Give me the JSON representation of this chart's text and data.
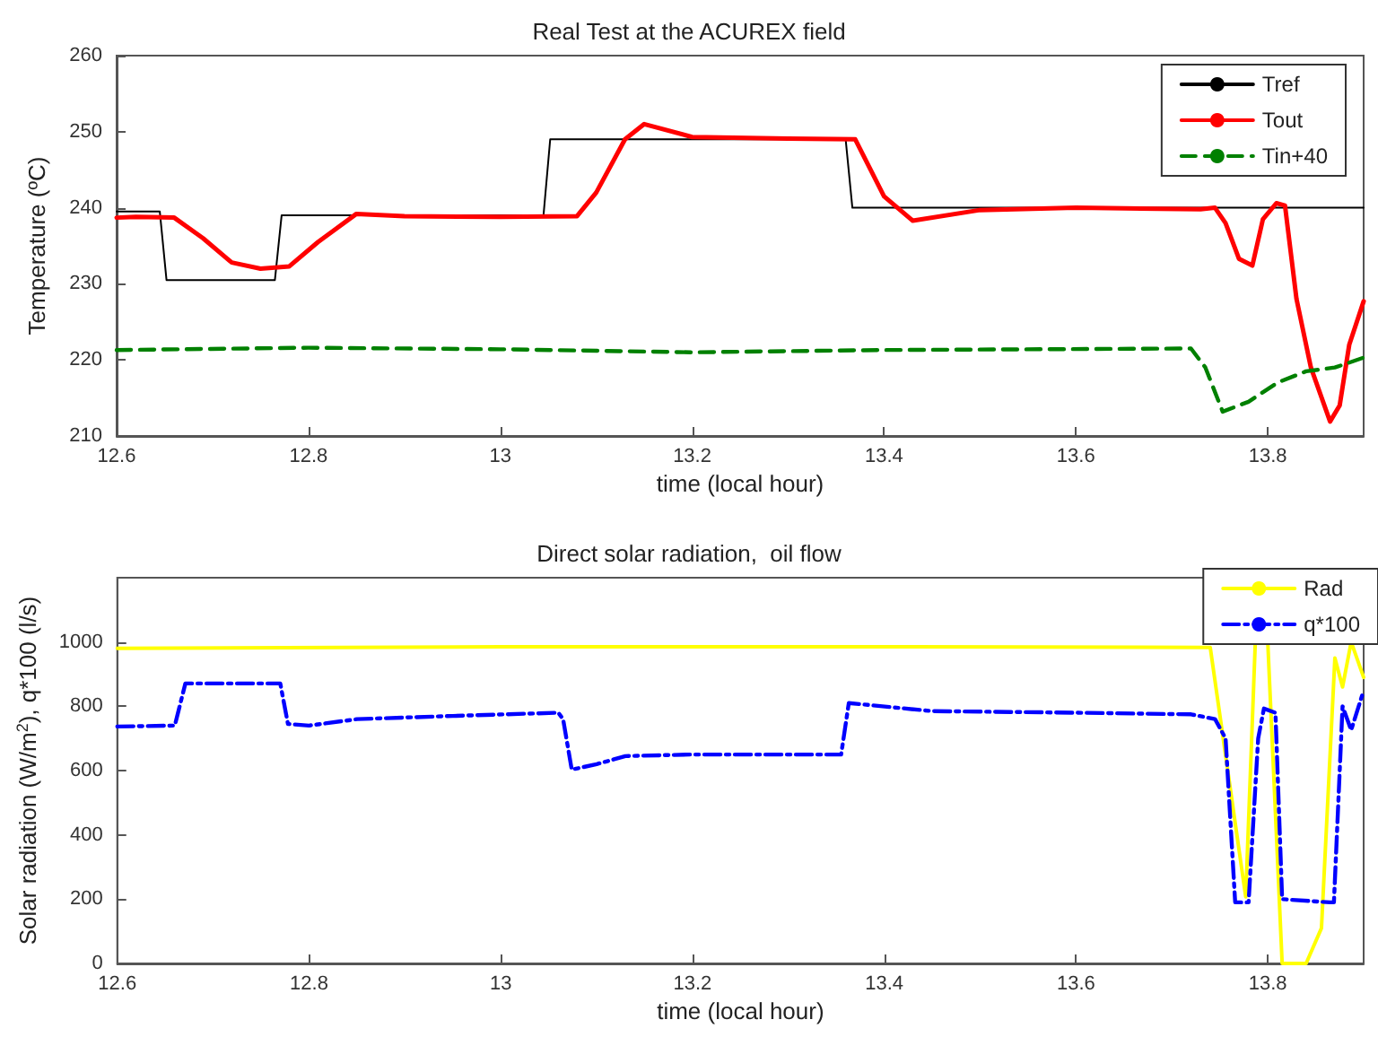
{
  "chart_data": [
    {
      "type": "line",
      "title": "Real Test at the ACUREX field",
      "xlabel": "time (local hour)",
      "ylabel": "Temperature (ºC)",
      "xlim": [
        12.6,
        13.9
      ],
      "xticks": [
        12.6,
        12.8,
        13,
        13.2,
        13.4,
        13.6,
        13.8
      ],
      "ylim": [
        210,
        260
      ],
      "yticks": [
        210,
        220,
        230,
        240,
        250,
        260
      ],
      "grid": false,
      "legend": "top right",
      "marker": "none",
      "series": [
        {
          "name": "Tref",
          "color": "#000000",
          "line_style": "solid",
          "x": [
            12.6,
            12.645,
            12.652,
            12.765,
            12.772,
            13.045,
            13.052,
            13.36,
            13.367,
            13.9
          ],
          "values": [
            239.5,
            239.5,
            230.5,
            230.5,
            239,
            239,
            249,
            249,
            240,
            240
          ]
        },
        {
          "name": "Tout",
          "color": "#ff0000",
          "line_style": "solid",
          "x": [
            12.6,
            12.62,
            12.66,
            12.69,
            12.72,
            12.75,
            12.78,
            12.81,
            12.85,
            12.9,
            13.0,
            13.08,
            13.1,
            13.13,
            13.15,
            13.2,
            13.3,
            13.37,
            13.4,
            13.43,
            13.5,
            13.6,
            13.73,
            13.745,
            13.756,
            13.77,
            13.784,
            13.795,
            13.809,
            13.818,
            13.83,
            13.845,
            13.865,
            13.875,
            13.885,
            13.9
          ],
          "values": [
            238.7,
            238.8,
            238.7,
            236,
            232.8,
            232,
            232.3,
            235.5,
            239.2,
            238.9,
            238.8,
            238.9,
            242,
            249,
            251,
            249.3,
            249.1,
            249,
            241.5,
            238.3,
            239.7,
            240,
            239.8,
            240,
            238,
            233.3,
            232.4,
            238.5,
            240.6,
            240.3,
            228,
            219,
            211.9,
            214,
            222,
            227.7
          ]
        },
        {
          "name": "Tin+40",
          "color": "#008000",
          "line_style": "dashed",
          "x": [
            12.6,
            12.8,
            13.0,
            13.2,
            13.4,
            13.72,
            13.735,
            13.753,
            13.78,
            13.81,
            13.84,
            13.87,
            13.9
          ],
          "values": [
            221.3,
            221.6,
            221.4,
            221,
            221.3,
            221.5,
            219,
            213.2,
            214.5,
            217,
            218.5,
            219,
            220.3
          ]
        }
      ]
    },
    {
      "type": "line",
      "title": "Direct solar radiation,  oil flow",
      "xlabel": "time (local hour)",
      "ylabel": "Solar radiation (W/m$^{2}$), q*100 (l/s)",
      "xlim": [
        12.6,
        13.9
      ],
      "xticks": [
        12.6,
        12.8,
        13,
        13.2,
        13.4,
        13.6,
        13.8
      ],
      "ylim": [
        0,
        1200
      ],
      "yticks": [
        0,
        200,
        400,
        600,
        800,
        1000
      ],
      "grid": false,
      "legend": "top right",
      "marker": "none",
      "series": [
        {
          "name": "Rad",
          "color": "#ffff00",
          "line_style": "solid",
          "x": [
            12.6,
            13.0,
            13.4,
            13.74,
            13.777,
            13.787,
            13.8,
            13.815,
            13.825,
            13.84,
            13.856,
            13.87,
            13.878,
            13.887,
            13.9
          ],
          "values": [
            980,
            985,
            985,
            983,
            207,
            1000,
            1000,
            0,
            0,
            0,
            110,
            950,
            860,
            1000,
            890
          ]
        },
        {
          "name": "q*100",
          "color": "#0000ff",
          "line_style": "dashdot",
          "x": [
            12.6,
            12.66,
            12.671,
            12.77,
            12.778,
            12.8,
            12.85,
            12.95,
            13.06,
            13.065,
            13.074,
            13.1,
            13.13,
            13.2,
            13.355,
            13.363,
            13.45,
            13.6,
            13.72,
            13.745,
            13.756,
            13.766,
            13.78,
            13.79,
            13.796,
            13.808,
            13.815,
            13.865,
            13.869,
            13.878,
            13.887,
            13.9
          ],
          "values": [
            737,
            740,
            871,
            871,
            745,
            740,
            760,
            770,
            780,
            760,
            603,
            620,
            645,
            650,
            650,
            810,
            785,
            780,
            775,
            760,
            700,
            190,
            190,
            700,
            793,
            780,
            200,
            190,
            190,
            800,
            726,
            849
          ]
        }
      ]
    }
  ]
}
